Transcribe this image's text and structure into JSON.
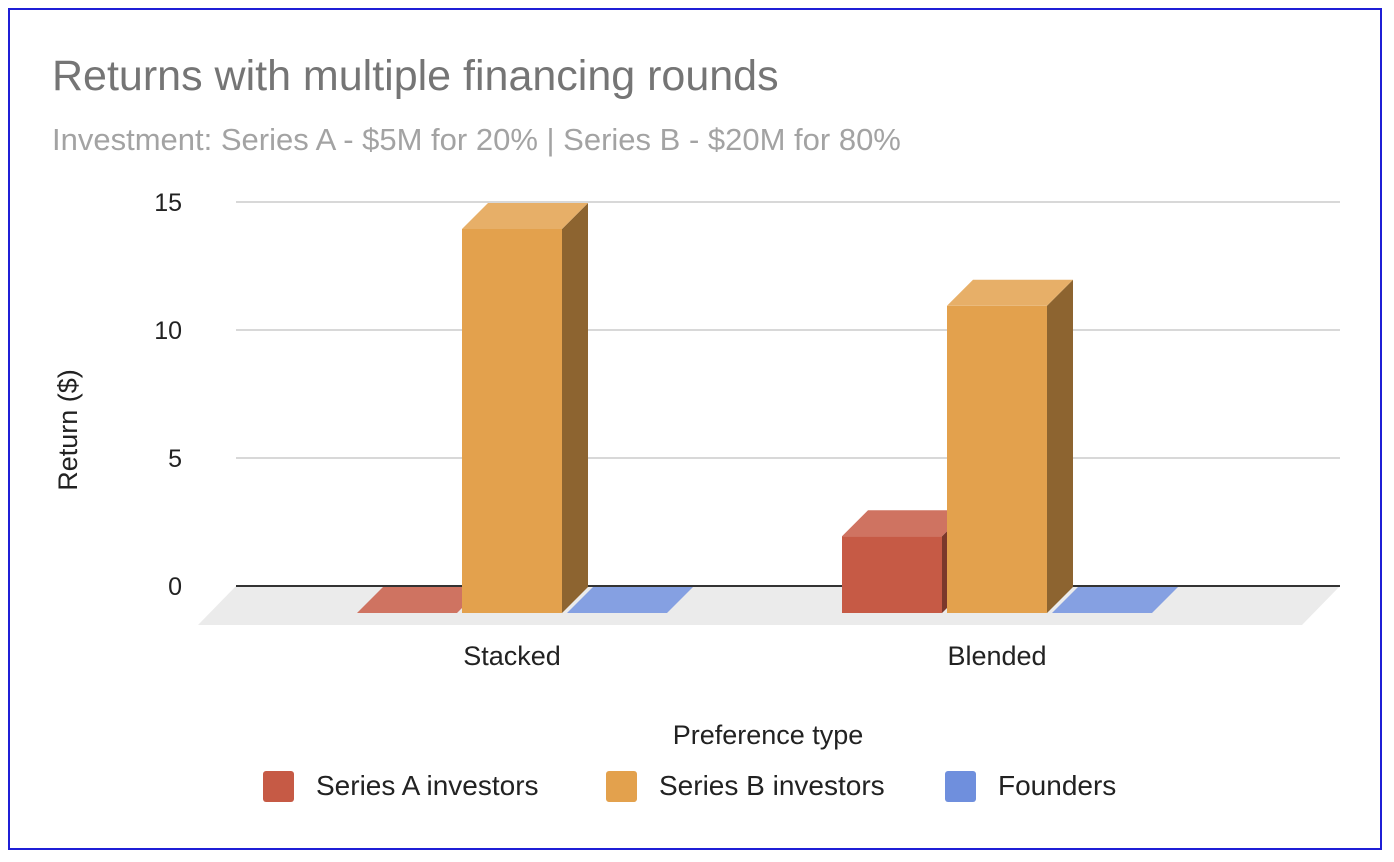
{
  "chart_data": {
    "type": "bar",
    "title": "Returns with multiple financing rounds",
    "subtitle": "Investment: Series A - $5M for 20% | Series B - $20M for 80%",
    "xlabel": "Preference type",
    "ylabel": "Return ($)",
    "categories": [
      "Stacked",
      "Blended"
    ],
    "series": [
      {
        "name": "Series A investors",
        "color": "#c65a45",
        "values": [
          0,
          3
        ]
      },
      {
        "name": "Series B investors",
        "color": "#e3a14d",
        "values": [
          15,
          12
        ]
      },
      {
        "name": "Founders",
        "color": "#6f8fdd",
        "values": [
          0,
          0
        ]
      }
    ],
    "ylim": [
      0,
      15
    ],
    "yticks": [
      0,
      5,
      10,
      15
    ],
    "grid": true,
    "three_d": true,
    "legend_position": "bottom"
  }
}
